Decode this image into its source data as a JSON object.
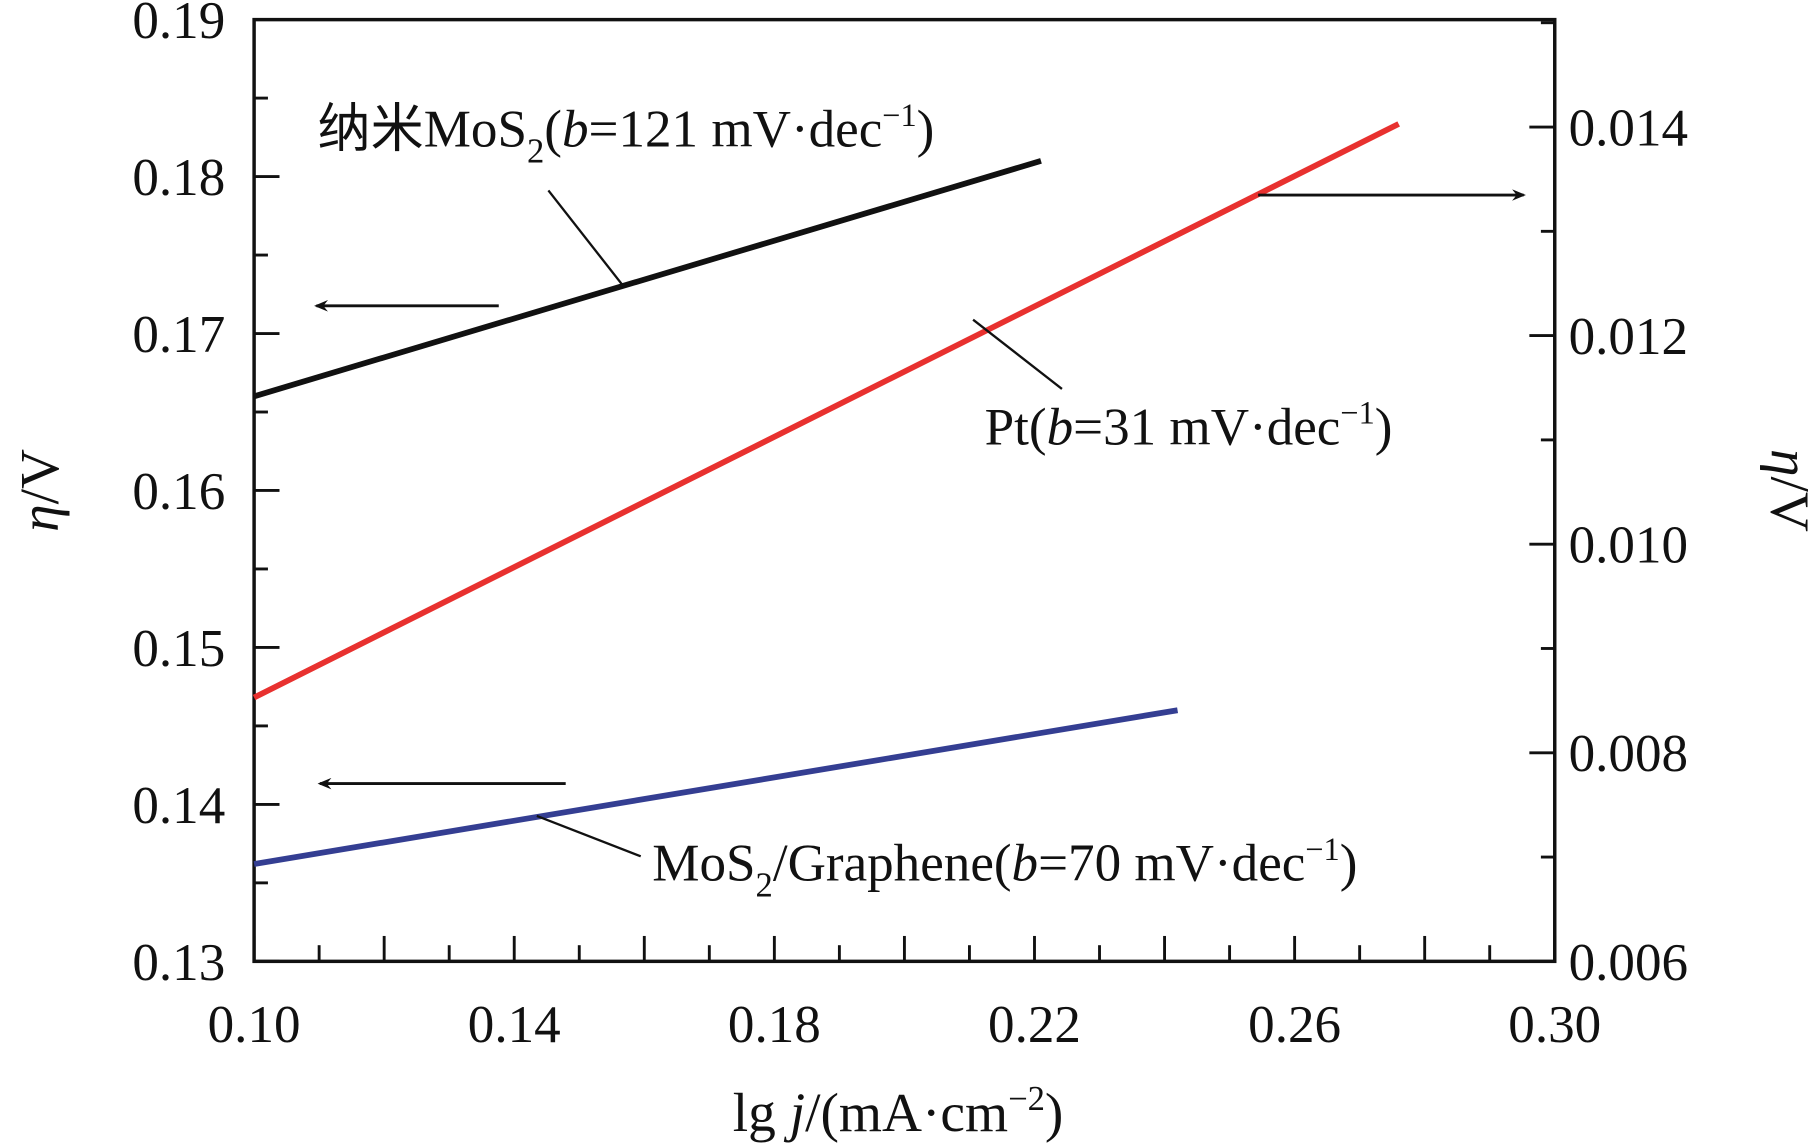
{
  "chart_data": {
    "type": "line",
    "xlabel": {
      "pre": "lg ",
      "var": "j",
      "post": "/(mA·cm",
      "sup": "−2",
      "end": ")"
    },
    "ylabel_left": {
      "var": "η",
      "post": "/V"
    },
    "ylabel_right": {
      "var": "η",
      "post": "/V"
    },
    "xlim": [
      0.1,
      0.3
    ],
    "ylim_left": [
      0.13,
      0.19
    ],
    "ylim_right": [
      0.006,
      0.01503
    ],
    "x_ticks": [
      "0.10",
      "0.14",
      "0.18",
      "0.22",
      "0.26",
      "0.30"
    ],
    "y_left_ticks": [
      "0.13",
      "0.14",
      "0.15",
      "0.16",
      "0.17",
      "0.18",
      "0.19"
    ],
    "y_right_ticks": [
      "0.006",
      "0.008",
      "0.010",
      "0.012",
      "0.014"
    ],
    "grid": false,
    "series": [
      {
        "name": "纳米MoS2",
        "axis": "left",
        "color": "#111111",
        "x": [
          0.1,
          0.221
        ],
        "y": [
          0.166,
          0.181
        ],
        "label": {
          "a": "纳米MoS",
          "sub": "2",
          "b": "(",
          "var": "b",
          "c": "=121 mV·dec",
          "sup": "−1",
          "d": ")"
        }
      },
      {
        "name": "Pt",
        "axis": "right",
        "color": "#e8312f",
        "x": [
          0.1,
          0.276
        ],
        "y": [
          0.00853,
          0.01403
        ],
        "label": {
          "a": "Pt",
          "sub": "",
          "b": "(",
          "var": "b",
          "c": "=31 mV·dec",
          "sup": "−1",
          "d": ")"
        }
      },
      {
        "name": "MoS2/Graphene",
        "axis": "left",
        "color": "#343e92",
        "x": [
          0.1,
          0.242
        ],
        "y": [
          0.1362,
          0.146
        ],
        "label": {
          "a": "MoS",
          "sub": "2",
          "b": "/Graphene(",
          "var": "b",
          "c": "=70 mV·dec",
          "sup": "−1",
          "d": ")"
        }
      }
    ]
  }
}
